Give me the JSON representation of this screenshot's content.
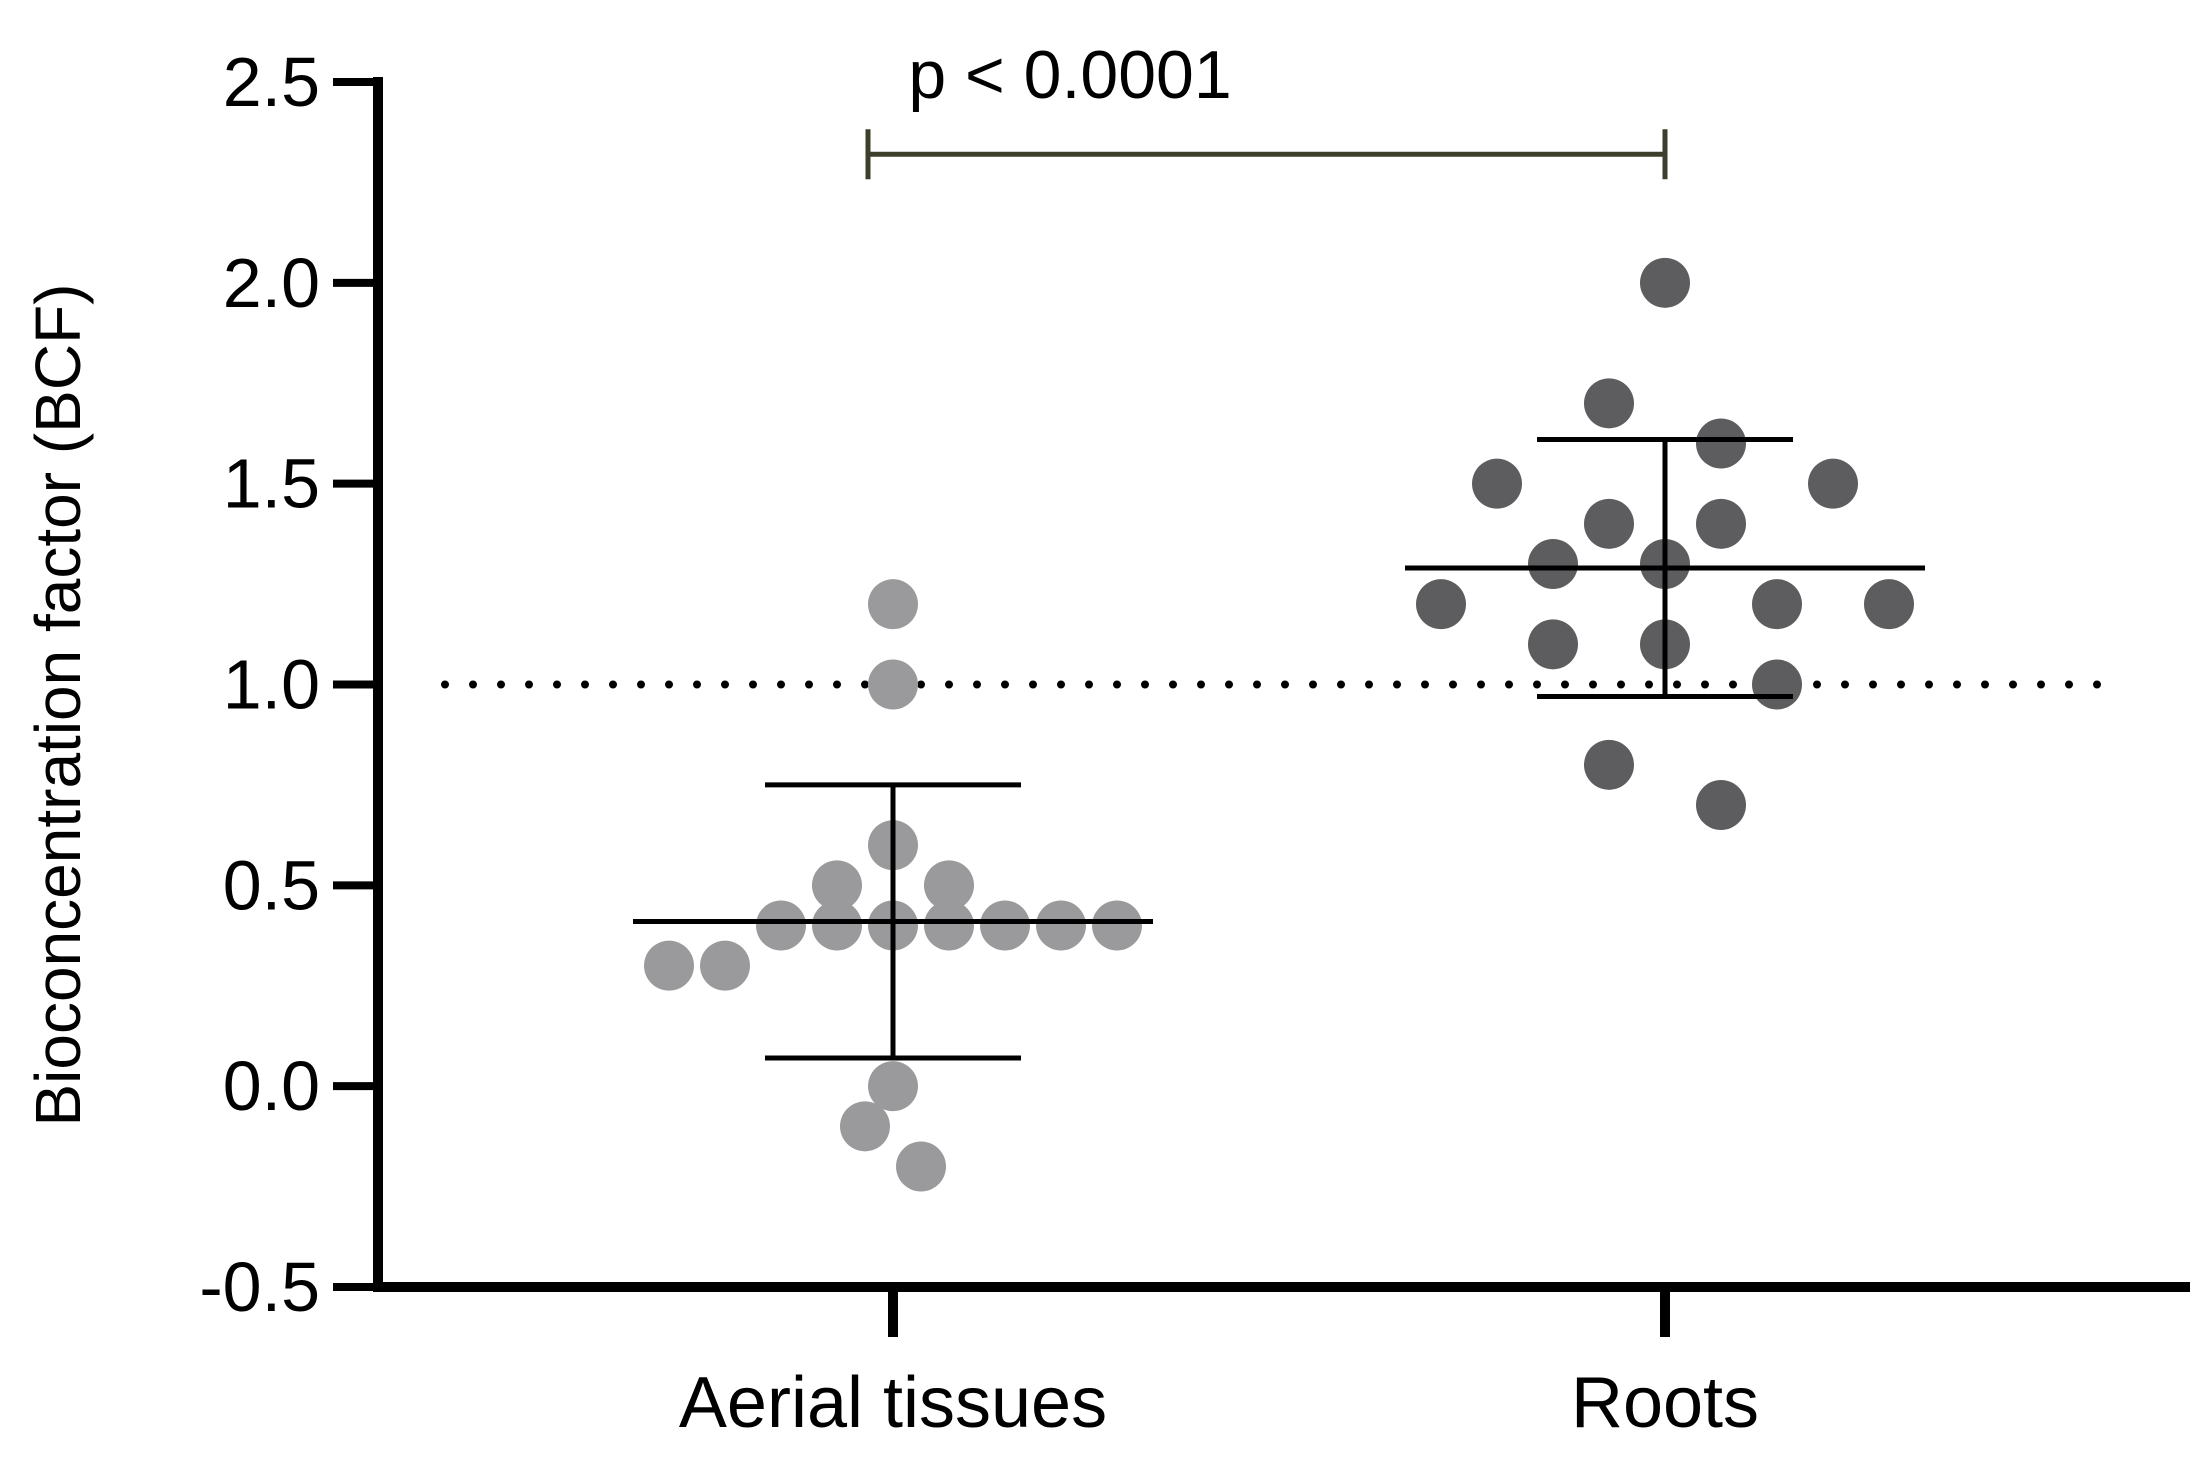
{
  "chart_data": {
    "type": "scatter",
    "subtype": "dot-plot-with-mean-and-sd",
    "title": "",
    "xlabel": "",
    "ylabel": "Bioconcentration factor (BCF)",
    "ylim": [
      -0.5,
      2.5
    ],
    "yticks": [
      -0.5,
      0.0,
      0.5,
      1.0,
      1.5,
      2.0,
      2.5
    ],
    "ytick_labels": [
      "-0.5",
      "0.0",
      "0.5",
      "1.0",
      "1.5",
      "2.0",
      "2.5"
    ],
    "categories": [
      "Aerial tissues",
      "Roots"
    ],
    "reference_line": {
      "y": 1.0,
      "style": "dotted"
    },
    "significance": {
      "label": "p < 0.0001",
      "between": [
        "Aerial tissues",
        "Roots"
      ],
      "y": 2.32
    },
    "series": [
      {
        "name": "Aerial tissues",
        "color": "#9a9a9c",
        "mean": 0.41,
        "sd_low": 0.07,
        "sd_high": 0.75,
        "points": [
          {
            "offset": -4,
            "y": 0.3
          },
          {
            "offset": -3,
            "y": 0.3
          },
          {
            "offset": -2,
            "y": 0.4
          },
          {
            "offset": -1,
            "y": 0.4
          },
          {
            "offset": 0,
            "y": 0.4
          },
          {
            "offset": 1,
            "y": 0.4
          },
          {
            "offset": 2,
            "y": 0.4
          },
          {
            "offset": 3,
            "y": 0.4
          },
          {
            "offset": 4,
            "y": 0.4
          },
          {
            "offset": -1,
            "y": 0.5
          },
          {
            "offset": 1,
            "y": 0.5
          },
          {
            "offset": 0,
            "y": 0.6
          },
          {
            "offset": 0,
            "y": 1.0
          },
          {
            "offset": 0,
            "y": 1.2
          },
          {
            "offset": 0,
            "y": 0.0
          },
          {
            "offset": -0.5,
            "y": -0.1
          },
          {
            "offset": 0.5,
            "y": -0.2
          }
        ]
      },
      {
        "name": "Roots",
        "color": "#5d5d5f",
        "mean": 1.29,
        "sd_low": 0.97,
        "sd_high": 1.61,
        "points": [
          {
            "offset": -4,
            "y": 1.2
          },
          {
            "offset": 2,
            "y": 1.2
          },
          {
            "offset": 4,
            "y": 1.2
          },
          {
            "offset": -2,
            "y": 1.3
          },
          {
            "offset": 0,
            "y": 1.3
          },
          {
            "offset": -1,
            "y": 1.4
          },
          {
            "offset": 1,
            "y": 1.4
          },
          {
            "offset": -3,
            "y": 1.5
          },
          {
            "offset": 3,
            "y": 1.5
          },
          {
            "offset": 1,
            "y": 1.6
          },
          {
            "offset": -1,
            "y": 1.7
          },
          {
            "offset": 0,
            "y": 2.0
          },
          {
            "offset": -2,
            "y": 1.1
          },
          {
            "offset": 0,
            "y": 1.1
          },
          {
            "offset": 2,
            "y": 1.0
          },
          {
            "offset": -1,
            "y": 0.8
          },
          {
            "offset": 1,
            "y": 0.7
          }
        ]
      }
    ]
  }
}
